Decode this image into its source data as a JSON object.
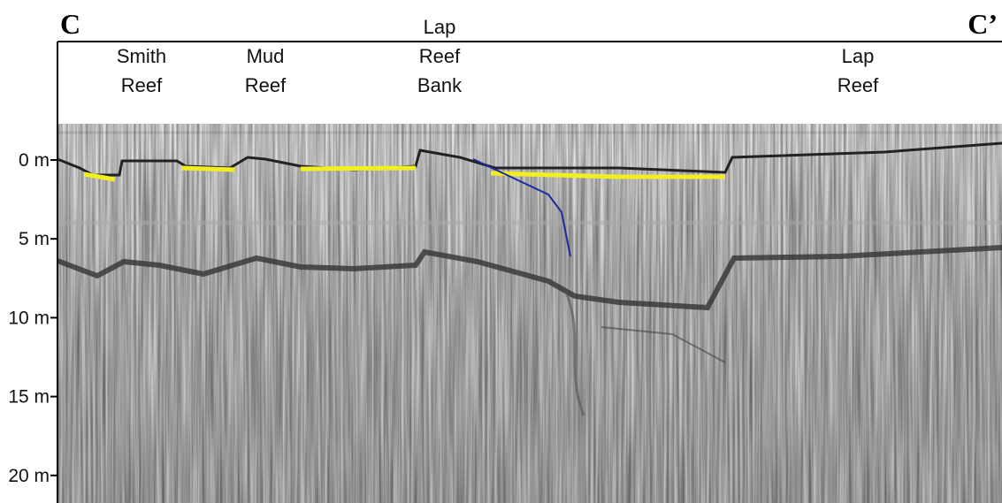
{
  "section": {
    "start": "C",
    "end": "C’"
  },
  "depth_axis": {
    "ticks": [
      "0 m",
      "5 m",
      "10 m",
      "15 m",
      "20 m"
    ]
  },
  "features": [
    {
      "lines": [
        "Smith",
        "Reef"
      ]
    },
    {
      "lines": [
        "Mud",
        "Reef"
      ]
    },
    {
      "lines": [
        "Lap",
        "Reef",
        "Bank"
      ]
    },
    {
      "lines": [
        "Lap",
        "Reef"
      ]
    }
  ]
}
